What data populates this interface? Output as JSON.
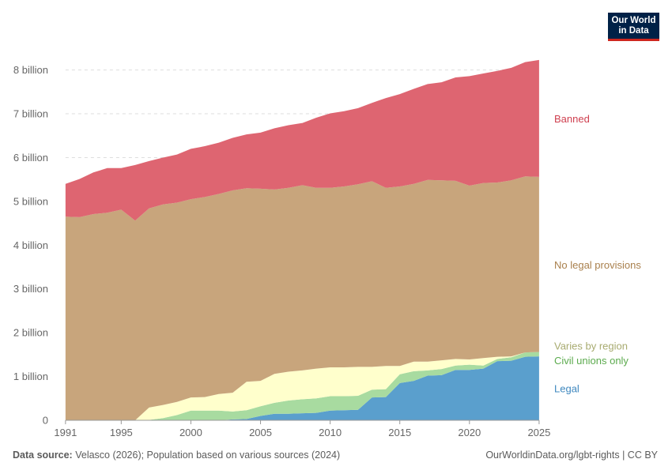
{
  "logo": {
    "line1": "Our World",
    "line2": "in Data"
  },
  "footer": {
    "source_label": "Data source:",
    "source_text": "Velasco (2026); Population based on various sources (2024)",
    "url": "OurWorldinData.org/lgbt-rights | CC BY"
  },
  "colors": {
    "legal": "#5a9fcd",
    "civil": "#a8dba0",
    "varies": "#ffffcc",
    "none": "#c8a57c",
    "banned": "#de6571",
    "legal_text": "#3f88bf",
    "civil_text": "#5cab4e",
    "varies_text": "#a8ab70",
    "none_text": "#a9804d",
    "banned_text": "#cf3f4f"
  },
  "chart_data": {
    "type": "area",
    "stacked": true,
    "x": [
      1991,
      1992,
      1993,
      1994,
      1995,
      1996,
      1997,
      1998,
      1999,
      2000,
      2001,
      2002,
      2003,
      2004,
      2005,
      2006,
      2007,
      2008,
      2009,
      2010,
      2011,
      2012,
      2013,
      2014,
      2015,
      2016,
      2017,
      2018,
      2019,
      2020,
      2021,
      2022,
      2023,
      2024,
      2025
    ],
    "xlim": [
      1990.1,
      2025.8
    ],
    "ylim": [
      0,
      8.3
    ],
    "xticks": [
      {
        "value": 1991,
        "label": "1991"
      },
      {
        "value": 1995,
        "label": "1995"
      },
      {
        "value": 2000,
        "label": "2000"
      },
      {
        "value": 2005,
        "label": "2005"
      },
      {
        "value": 2010,
        "label": "2010"
      },
      {
        "value": 2015,
        "label": "2015"
      },
      {
        "value": 2020,
        "label": "2020"
      },
      {
        "value": 2025,
        "label": "2025"
      }
    ],
    "yticks": [
      {
        "value": 0,
        "label": "0"
      },
      {
        "value": 1,
        "label": "1 billion"
      },
      {
        "value": 2,
        "label": "2 billion"
      },
      {
        "value": 3,
        "label": "3 billion"
      },
      {
        "value": 4,
        "label": "4 billion"
      },
      {
        "value": 5,
        "label": "5 billion"
      },
      {
        "value": 6,
        "label": "6 billion"
      },
      {
        "value": 7,
        "label": "7 billion"
      },
      {
        "value": 8,
        "label": "8 billion"
      }
    ],
    "grid": true,
    "series": [
      {
        "name": "Legal",
        "key": "legal",
        "label_y": 0.72,
        "values": [
          0,
          0,
          0,
          0,
          0,
          0,
          0,
          0,
          0,
          0,
          0,
          0,
          0.02,
          0.03,
          0.1,
          0.15,
          0.15,
          0.16,
          0.17,
          0.22,
          0.23,
          0.24,
          0.52,
          0.53,
          0.85,
          0.9,
          1.02,
          1.03,
          1.15,
          1.15,
          1.18,
          1.35,
          1.36,
          1.45,
          1.46
        ]
      },
      {
        "name": "Civil unions only",
        "key": "civil",
        "label_y": 1.36,
        "values": [
          0,
          0,
          0.01,
          0.01,
          0.01,
          0,
          0.01,
          0.05,
          0.12,
          0.22,
          0.22,
          0.22,
          0.18,
          0.2,
          0.22,
          0.25,
          0.3,
          0.32,
          0.33,
          0.33,
          0.32,
          0.32,
          0.18,
          0.18,
          0.2,
          0.22,
          0.12,
          0.14,
          0.1,
          0.12,
          0.07,
          0.05,
          0.08,
          0.1,
          0.1
        ]
      },
      {
        "name": "Varies by region",
        "key": "varies",
        "label_y": 1.7,
        "values": [
          0,
          0,
          0,
          0,
          0,
          0,
          0.28,
          0.3,
          0.3,
          0.3,
          0.31,
          0.38,
          0.43,
          0.65,
          0.58,
          0.66,
          0.66,
          0.66,
          0.68,
          0.66,
          0.66,
          0.66,
          0.52,
          0.53,
          0.19,
          0.22,
          0.2,
          0.2,
          0.15,
          0.12,
          0.17,
          0.05,
          0.02,
          0,
          0
        ]
      },
      {
        "name": "No legal provisions",
        "key": "none",
        "label_y": 3.55,
        "values": [
          4.65,
          4.64,
          4.7,
          4.73,
          4.8,
          4.56,
          4.55,
          4.58,
          4.55,
          4.53,
          4.57,
          4.57,
          4.62,
          4.42,
          4.39,
          4.21,
          4.2,
          4.23,
          4.13,
          4.1,
          4.13,
          4.17,
          4.24,
          4.07,
          4.1,
          4.06,
          4.15,
          4.11,
          4.07,
          3.97,
          4,
          3.98,
          4.02,
          4.02,
          4
        ]
      },
      {
        "name": "Banned",
        "key": "banned",
        "label_y": 6.88,
        "values": [
          0.75,
          0.87,
          0.95,
          1.02,
          0.95,
          1.27,
          1.08,
          1.07,
          1.1,
          1.15,
          1.16,
          1.17,
          1.2,
          1.23,
          1.28,
          1.4,
          1.43,
          1.42,
          1.6,
          1.7,
          1.72,
          1.74,
          1.79,
          2.05,
          2.11,
          2.17,
          2.19,
          2.24,
          2.36,
          2.5,
          2.5,
          2.55,
          2.57,
          2.61,
          2.67
        ]
      }
    ]
  }
}
